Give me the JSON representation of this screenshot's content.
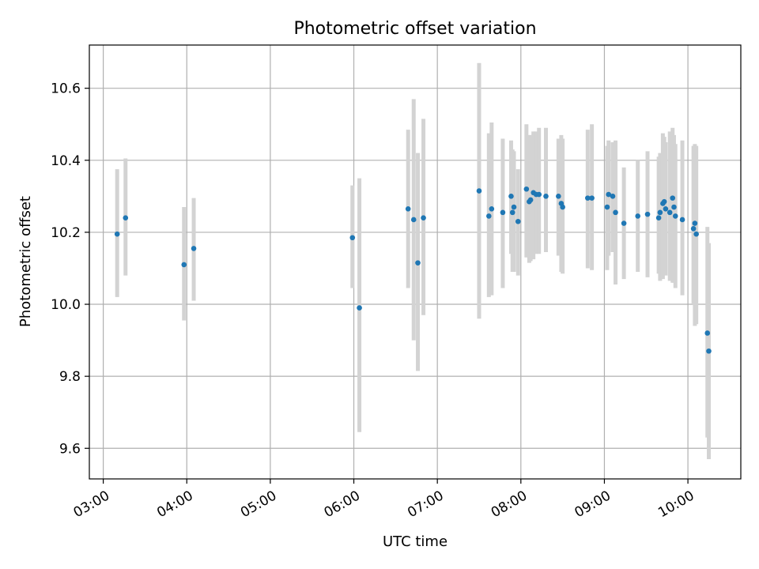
{
  "chart_data": {
    "type": "scatter",
    "title": "Photometric offset variation",
    "xlabel": "UTC time",
    "ylabel": "Photometric offset",
    "xlim": [
      "02:50",
      "10:38"
    ],
    "ylim": [
      9.515,
      10.72
    ],
    "grid": true,
    "x_ticks": [
      "03:00",
      "04:00",
      "05:00",
      "06:00",
      "07:00",
      "08:00",
      "09:00",
      "10:00"
    ],
    "y_ticks": [
      9.6,
      9.8,
      10.0,
      10.2,
      10.4,
      10.6
    ],
    "y_tick_labels": [
      "9.6",
      "9.8",
      "10.0",
      "10.2",
      "10.4",
      "10.6"
    ],
    "colors": {
      "point": "#1f77b4",
      "errorbar": "#d3d3d3",
      "grid": "#b0b0b0"
    },
    "series": [
      {
        "x": [
          "03:10",
          "03:16",
          "03:58",
          "04:05",
          "05:59",
          "06:04",
          "06:39",
          "06:43",
          "06:46",
          "06:50",
          "07:30",
          "07:37",
          "07:39",
          "07:47",
          "07:53",
          "07:54",
          "07:55",
          "07:58",
          "08:04",
          "08:06",
          "08:07",
          "08:09",
          "08:11",
          "08:13",
          "08:18",
          "08:27",
          "08:29",
          "08:30",
          "08:48",
          "08:51",
          "09:02",
          "09:03",
          "09:06",
          "09:08",
          "09:14",
          "09:24",
          "09:31",
          "09:39",
          "09:40",
          "09:42",
          "09:43",
          "09:44",
          "09:47",
          "09:49",
          "09:50",
          "09:51",
          "09:56",
          "10:04",
          "10:05",
          "10:06",
          "10:14",
          "10:15"
        ],
        "y": [
          10.195,
          10.24,
          10.11,
          10.155,
          10.185,
          9.99,
          10.265,
          10.235,
          10.115,
          10.24,
          10.315,
          10.245,
          10.265,
          10.255,
          10.3,
          10.255,
          10.27,
          10.23,
          10.32,
          10.285,
          10.29,
          10.31,
          10.305,
          10.305,
          10.3,
          10.3,
          10.28,
          10.27,
          10.295,
          10.295,
          10.27,
          10.305,
          10.3,
          10.255,
          10.225,
          10.245,
          10.25,
          10.24,
          10.255,
          10.28,
          10.285,
          10.265,
          10.255,
          10.295,
          10.27,
          10.245,
          10.235,
          10.21,
          10.225,
          10.195,
          9.92,
          9.87
        ],
        "yerr_low": [
          10.02,
          10.08,
          9.955,
          10.01,
          10.045,
          9.645,
          10.045,
          9.9,
          9.815,
          9.97,
          9.96,
          10.02,
          10.025,
          10.045,
          10.14,
          10.09,
          10.09,
          10.08,
          10.13,
          10.115,
          10.12,
          10.125,
          10.14,
          10.14,
          10.145,
          10.135,
          10.09,
          10.085,
          10.1,
          10.095,
          10.095,
          10.135,
          10.145,
          10.055,
          10.07,
          10.09,
          10.075,
          10.085,
          10.065,
          10.07,
          10.09,
          10.08,
          10.065,
          10.06,
          10.06,
          10.045,
          10.025,
          10.0,
          9.94,
          9.945,
          9.63,
          9.57
        ],
        "yerr_high": [
          10.375,
          10.405,
          10.27,
          10.295,
          10.33,
          10.35,
          10.485,
          10.57,
          10.42,
          10.515,
          10.67,
          10.475,
          10.505,
          10.46,
          10.455,
          10.43,
          10.425,
          10.375,
          10.5,
          10.47,
          10.47,
          10.48,
          10.48,
          10.49,
          10.49,
          10.46,
          10.47,
          10.46,
          10.485,
          10.5,
          10.44,
          10.455,
          10.45,
          10.455,
          10.38,
          10.4,
          10.425,
          10.41,
          10.42,
          10.475,
          10.465,
          10.45,
          10.48,
          10.49,
          10.47,
          10.445,
          10.455,
          10.44,
          10.445,
          10.44,
          10.215,
          10.17
        ]
      }
    ]
  }
}
